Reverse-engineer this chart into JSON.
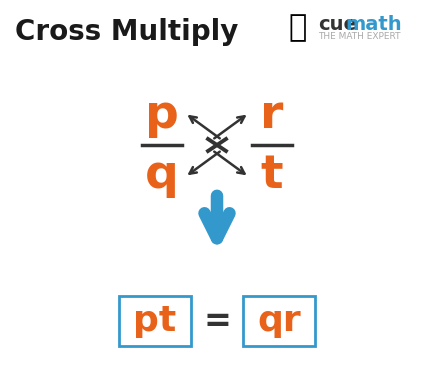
{
  "title": "Cross Multiply",
  "title_color": "#1a1a1a",
  "title_fontsize": 20,
  "orange_color": "#e8621a",
  "blue_color": "#3399cc",
  "dark_color": "#333333",
  "bg_color": "#ffffff",
  "fraction_left_num": "p",
  "fraction_left_den": "q",
  "fraction_right_num": "r",
  "fraction_right_den": "t",
  "result_left": "pt",
  "result_right": "qr",
  "equals": "=",
  "cuemath_text1": "cue",
  "cuemath_text2": "math",
  "cuemath_sub": "THE MATH EXPERT",
  "cuemath_dark": "#333333",
  "cuemath_blue": "#3399cc",
  "cuemath_sub_color": "#aaaaaa"
}
